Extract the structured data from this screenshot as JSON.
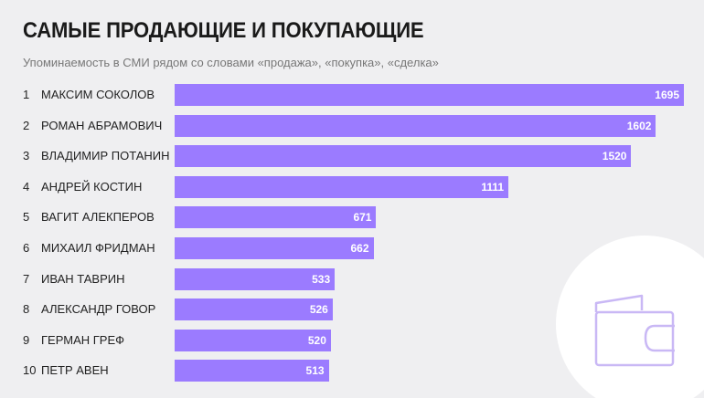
{
  "header": {
    "title": "САМЫЕ ПРОДАЮЩИЕ И ПОКУПАЮЩИЕ",
    "subtitle": "Упоминаемость в СМИ рядом со словами «продажа», «покупка», «сделка»"
  },
  "colors": {
    "bar": "#9b7bff",
    "background": "#efeff1",
    "decor_stroke": "#c9b8f5"
  },
  "icons": {
    "decor": "wallet-icon"
  },
  "chart_data": {
    "type": "bar",
    "orientation": "horizontal",
    "title": "САМЫЕ ПРОДАЮЩИЕ И ПОКУПАЮЩИЕ",
    "subtitle": "Упоминаемость в СМИ рядом со словами «продажа», «покупка», «сделка»",
    "ranks": [
      "1",
      "2",
      "3",
      "4",
      "5",
      "6",
      "7",
      "8",
      "9",
      "10"
    ],
    "categories": [
      "Максим Соколов",
      "Роман Абрамович",
      "Владимир Потанин",
      "Андрей Костин",
      "Вагит Алекперов",
      "Михаил Фридман",
      "Иван Таврин",
      "Александр Говор",
      "Герман Греф",
      "Петр Авен"
    ],
    "values": [
      1695,
      1602,
      1520,
      1111,
      671,
      662,
      533,
      526,
      520,
      513
    ],
    "xlim": [
      0,
      1695
    ],
    "xlabel": "",
    "ylabel": ""
  }
}
